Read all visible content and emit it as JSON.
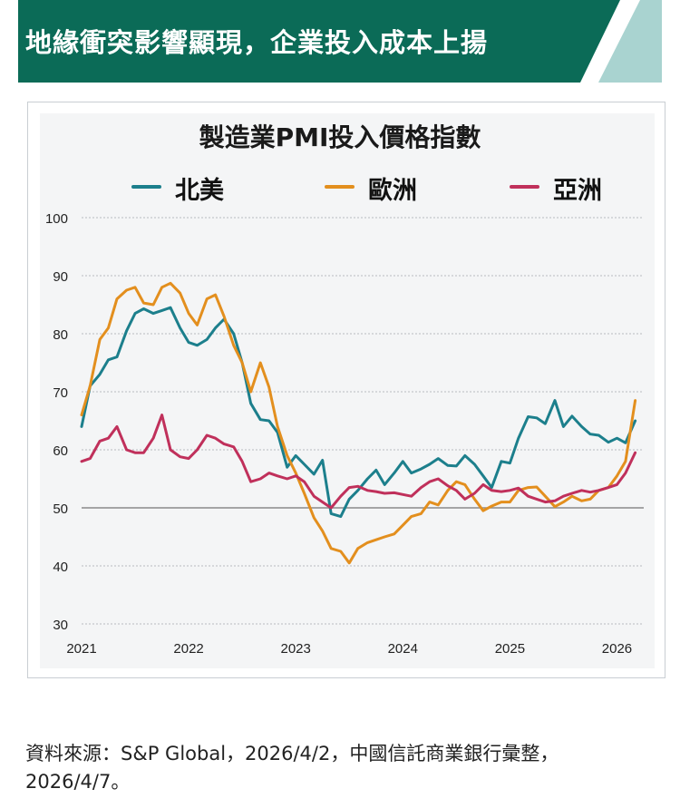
{
  "header": {
    "title": "地緣衝突影響顯現，企業投入成本上揚",
    "colors": {
      "primary": "#0b6b57",
      "accent": "#a9d3d0"
    }
  },
  "chart_data": {
    "type": "line",
    "title": "製造業PMI投入價格指數",
    "xlabel": "",
    "ylabel": "",
    "x_ticks": [
      "2021",
      "2022",
      "2023",
      "2024",
      "2025",
      "2026"
    ],
    "y_ticks": [
      "30",
      "40",
      "50",
      "60",
      "70",
      "80",
      "90",
      "100"
    ],
    "ylim": [
      30,
      100
    ],
    "xlim": [
      2021.0,
      2026.25
    ],
    "reference_line": 50,
    "legend_position": "top",
    "series": [
      {
        "name": "北美",
        "color": "#1c7f8c",
        "x": [
          2021.0,
          2021.08,
          2021.17,
          2021.25,
          2021.33,
          2021.42,
          2021.5,
          2021.58,
          2021.67,
          2021.75,
          2021.83,
          2021.92,
          2022.0,
          2022.08,
          2022.17,
          2022.25,
          2022.33,
          2022.42,
          2022.5,
          2022.58,
          2022.67,
          2022.75,
          2022.83,
          2022.92,
          2023.0,
          2023.08,
          2023.17,
          2023.25,
          2023.33,
          2023.42,
          2023.5,
          2023.58,
          2023.67,
          2023.75,
          2023.83,
          2023.92,
          2024.0,
          2024.08,
          2024.17,
          2024.25,
          2024.33,
          2024.42,
          2024.5,
          2024.58,
          2024.67,
          2024.75,
          2024.83,
          2024.92,
          2025.0,
          2025.08,
          2025.17,
          2025.25,
          2025.33,
          2025.42,
          2025.5,
          2025.58,
          2025.67,
          2025.75,
          2025.83,
          2025.92,
          2026.0,
          2026.08,
          2026.17
        ],
        "values": [
          64,
          71,
          73,
          75.5,
          76,
          80.5,
          83.5,
          84.3,
          83.5,
          84,
          84.5,
          81,
          78.5,
          78,
          79,
          81,
          82.5,
          80,
          75,
          68,
          65.2,
          65,
          63,
          57,
          59,
          57.5,
          55.8,
          58.2,
          49,
          48.5,
          51.5,
          53,
          55,
          56.5,
          54,
          56,
          58,
          56,
          56.7,
          57.5,
          58.5,
          57.3,
          57.2,
          59,
          57.5,
          55.5,
          53.5,
          58,
          57.7,
          62,
          65.7,
          65.5,
          64.5,
          68.5,
          64,
          65.8,
          64,
          62.7,
          62.5,
          61.3,
          62,
          61.2,
          65
        ]
      },
      {
        "name": "歐洲",
        "color": "#e38f1e",
        "x": [
          2021.0,
          2021.08,
          2021.17,
          2021.25,
          2021.33,
          2021.42,
          2021.5,
          2021.58,
          2021.67,
          2021.75,
          2021.83,
          2021.92,
          2022.0,
          2022.08,
          2022.17,
          2022.25,
          2022.33,
          2022.42,
          2022.5,
          2022.58,
          2022.67,
          2022.75,
          2022.83,
          2022.92,
          2023.0,
          2023.08,
          2023.17,
          2023.25,
          2023.33,
          2023.42,
          2023.5,
          2023.58,
          2023.67,
          2023.75,
          2023.83,
          2023.92,
          2024.0,
          2024.08,
          2024.17,
          2024.25,
          2024.33,
          2024.42,
          2024.5,
          2024.58,
          2024.67,
          2024.75,
          2024.83,
          2024.92,
          2025.0,
          2025.08,
          2025.17,
          2025.25,
          2025.33,
          2025.42,
          2025.5,
          2025.58,
          2025.67,
          2025.75,
          2025.83,
          2025.92,
          2026.0,
          2026.08,
          2026.17
        ],
        "values": [
          66,
          71,
          79,
          81,
          86,
          87.5,
          88,
          85.3,
          85,
          88,
          88.7,
          87,
          83.5,
          81.5,
          86,
          86.7,
          83,
          78,
          75,
          70,
          75,
          70.8,
          64,
          59,
          56,
          52.5,
          48.3,
          46,
          43,
          42.5,
          40.5,
          43,
          44,
          44.5,
          45,
          45.5,
          47,
          48.5,
          49,
          51,
          50.5,
          53,
          54.5,
          54,
          51.5,
          49.5,
          50.3,
          51,
          51,
          53,
          53.5,
          53.6,
          52,
          50.2,
          51,
          52,
          51.2,
          51.5,
          53,
          53.5,
          55.5,
          58,
          68.5
        ]
      },
      {
        "name": "亞洲",
        "color": "#c0305b",
        "x": [
          2021.0,
          2021.08,
          2021.17,
          2021.25,
          2021.33,
          2021.42,
          2021.5,
          2021.58,
          2021.67,
          2021.75,
          2021.83,
          2021.92,
          2022.0,
          2022.08,
          2022.17,
          2022.25,
          2022.33,
          2022.42,
          2022.5,
          2022.58,
          2022.67,
          2022.75,
          2022.83,
          2022.92,
          2023.0,
          2023.08,
          2023.17,
          2023.25,
          2023.33,
          2023.42,
          2023.5,
          2023.58,
          2023.67,
          2023.75,
          2023.83,
          2023.92,
          2024.0,
          2024.08,
          2024.17,
          2024.25,
          2024.33,
          2024.42,
          2024.5,
          2024.58,
          2024.67,
          2024.75,
          2024.83,
          2024.92,
          2025.0,
          2025.08,
          2025.17,
          2025.25,
          2025.33,
          2025.42,
          2025.5,
          2025.58,
          2025.67,
          2025.75,
          2025.83,
          2025.92,
          2026.0,
          2026.08,
          2026.17
        ],
        "values": [
          58,
          58.5,
          61.5,
          62,
          64,
          60,
          59.5,
          59.5,
          62,
          66,
          60,
          58.8,
          58.5,
          60,
          62.5,
          62,
          61,
          60.5,
          58,
          54.5,
          55,
          56,
          55.5,
          55,
          55.5,
          54.5,
          52,
          51,
          50,
          52,
          53.5,
          53.7,
          53,
          52.8,
          52.5,
          52.6,
          52.3,
          52,
          53.5,
          54.5,
          55,
          53.8,
          53,
          51.5,
          52.5,
          54,
          53,
          52.8,
          53,
          53.4,
          52,
          51.5,
          51,
          51.2,
          52,
          52.5,
          53,
          52.7,
          53,
          53.5,
          54,
          56,
          59.5
        ]
      }
    ]
  },
  "source": {
    "text": "資料來源：S&P Global，2026/4/2，中國信託商業銀行彙整，2026/4/7。"
  }
}
